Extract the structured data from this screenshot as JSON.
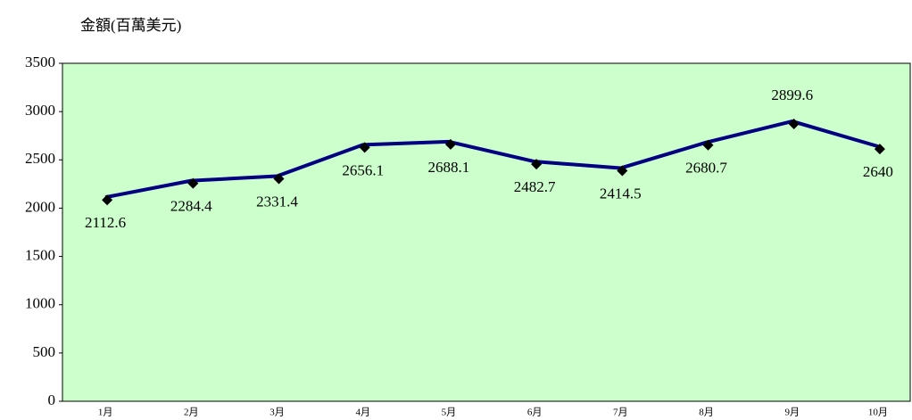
{
  "chart_data": {
    "type": "line",
    "y_label": "金額(百萬美元)",
    "categories": [
      "1月",
      "2月",
      "3月",
      "4月",
      "5月",
      "6月",
      "7月",
      "8月",
      "9月",
      "10月"
    ],
    "values": [
      2112.6,
      2284.4,
      2331.4,
      2656.1,
      2688.1,
      2482.7,
      2414.5,
      2680.7,
      2899.6,
      2640
    ],
    "color": "#000080",
    "marker_color": "#000000",
    "background": "#ccffcc",
    "ylim": [
      0,
      3500
    ],
    "yticks": [
      0,
      500,
      1000,
      1500,
      2000,
      2500,
      3000,
      3500
    ]
  }
}
